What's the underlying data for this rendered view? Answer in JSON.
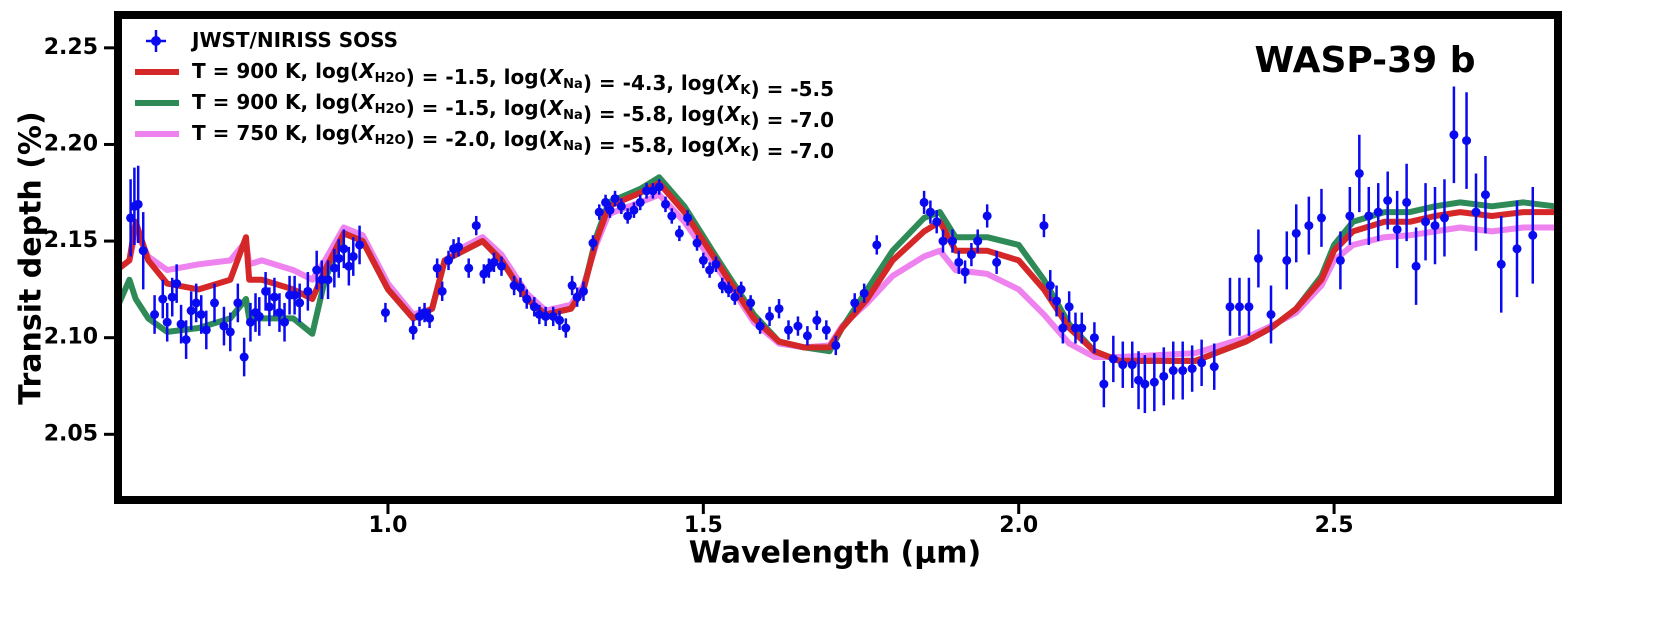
{
  "chart_data": {
    "type": "errorbar_line",
    "title": "WASP-39 b",
    "x_label": "Wavelength (μm)",
    "y_label": "Transit depth (%)",
    "xlim": [
      0.572,
      2.855
    ],
    "ylim": [
      2.016,
      2.267
    ],
    "xticks": [
      {
        "value": 1.0,
        "label": "1.0"
      },
      {
        "value": 1.5,
        "label": "1.5"
      },
      {
        "value": 2.0,
        "label": "2.0"
      },
      {
        "value": 2.5,
        "label": "2.5"
      }
    ],
    "yticks": [
      2.05,
      {
        "value": 2.1,
        "label": "2.10"
      },
      2.15,
      {
        "value": 2.2,
        "label": "2.20"
      },
      2.25
    ],
    "legend": "upper left",
    "series": [
      {
        "name": "JWST/NIRISS SOSS",
        "color": "#0a0af0",
        "x": [
          0.592,
          0.598,
          0.604,
          0.612,
          0.63,
          0.643,
          0.65,
          0.658,
          0.665,
          0.672,
          0.68,
          0.688,
          0.696,
          0.704,
          0.712,
          0.725,
          0.74,
          0.75,
          0.762,
          0.772,
          0.782,
          0.79,
          0.796,
          0.806,
          0.812,
          0.82,
          0.828,
          0.836,
          0.844,
          0.852,
          0.86,
          0.873,
          0.887,
          0.895,
          0.905,
          0.915,
          0.922,
          0.93,
          0.938,
          0.945,
          0.955,
          0.996,
          1.04,
          1.05,
          1.058,
          1.066,
          1.078,
          1.086,
          1.096,
          1.104,
          1.112,
          1.128,
          1.14,
          1.152,
          1.16,
          1.168,
          1.18,
          1.2,
          1.21,
          1.22,
          1.232,
          1.24,
          1.25,
          1.262,
          1.272,
          1.282,
          1.292,
          1.3,
          1.31,
          1.325,
          1.335,
          1.345,
          1.352,
          1.36,
          1.37,
          1.38,
          1.39,
          1.4,
          1.41,
          1.42,
          1.43,
          1.44,
          1.45,
          1.462,
          1.475,
          1.49,
          1.5,
          1.51,
          1.52,
          1.53,
          1.54,
          1.55,
          1.56,
          1.575,
          1.59,
          1.605,
          1.62,
          1.635,
          1.65,
          1.665,
          1.68,
          1.695,
          1.71,
          1.74,
          1.755,
          1.775,
          1.85,
          1.86,
          1.87,
          1.88,
          1.895,
          1.905,
          1.915,
          1.925,
          1.935,
          1.95,
          1.965,
          2.04,
          2.05,
          2.06,
          2.07,
          2.08,
          2.09,
          2.1,
          2.12,
          2.135,
          2.15,
          2.165,
          2.18,
          2.19,
          2.2,
          2.215,
          2.23,
          2.245,
          2.26,
          2.275,
          2.29,
          2.31,
          2.335,
          2.35,
          2.365,
          2.38,
          2.4,
          2.425,
          2.44,
          2.46,
          2.48,
          2.51,
          2.525,
          2.54,
          2.555,
          2.57,
          2.585,
          2.6,
          2.615,
          2.63,
          2.645,
          2.66,
          2.675,
          2.69,
          2.71,
          2.725,
          2.74,
          2.765,
          2.79,
          2.815
        ],
        "values": [
          2.162,
          2.168,
          2.169,
          2.145,
          2.112,
          2.12,
          2.108,
          2.121,
          2.128,
          2.107,
          2.099,
          2.114,
          2.118,
          2.112,
          2.104,
          2.118,
          2.106,
          2.103,
          2.118,
          2.09,
          2.108,
          2.113,
          2.111,
          2.124,
          2.116,
          2.121,
          2.113,
          2.108,
          2.122,
          2.122,
          2.118,
          2.124,
          2.135,
          2.13,
          2.13,
          2.136,
          2.141,
          2.146,
          2.137,
          2.142,
          2.148,
          2.113,
          2.104,
          2.111,
          2.113,
          2.11,
          2.136,
          2.124,
          2.14,
          2.146,
          2.147,
          2.136,
          2.158,
          2.133,
          2.136,
          2.139,
          2.137,
          2.127,
          2.126,
          2.12,
          2.116,
          2.112,
          2.111,
          2.111,
          2.109,
          2.105,
          2.127,
          2.121,
          2.124,
          2.149,
          2.165,
          2.17,
          2.166,
          2.172,
          2.168,
          2.163,
          2.166,
          2.17,
          2.176,
          2.176,
          2.178,
          2.169,
          2.163,
          2.154,
          2.162,
          2.149,
          2.14,
          2.135,
          2.138,
          2.127,
          2.125,
          2.121,
          2.125,
          2.118,
          2.106,
          2.111,
          2.115,
          2.104,
          2.106,
          2.101,
          2.109,
          2.104,
          2.096,
          2.118,
          2.123,
          2.148,
          2.17,
          2.165,
          2.16,
          2.15,
          2.15,
          2.139,
          2.134,
          2.143,
          2.15,
          2.163,
          2.139,
          2.158,
          2.127,
          2.119,
          2.105,
          2.116,
          2.105,
          2.105,
          2.1,
          2.076,
          2.089,
          2.086,
          2.086,
          2.078,
          2.076,
          2.077,
          2.08,
          2.083,
          2.083,
          2.084,
          2.087,
          2.085,
          2.116,
          2.116,
          2.116,
          2.141,
          2.112,
          2.14,
          2.154,
          2.158,
          2.162,
          2.14,
          2.163,
          2.185,
          2.163,
          2.165,
          2.171,
          2.156,
          2.17,
          2.137,
          2.16,
          2.158,
          2.162,
          2.205,
          2.202,
          2.165,
          2.174,
          2.138,
          2.146,
          2.153
        ],
        "errors": [
          0.02,
          0.02,
          0.02,
          0.02,
          0.01,
          0.01,
          0.01,
          0.01,
          0.01,
          0.01,
          0.01,
          0.01,
          0.01,
          0.01,
          0.01,
          0.01,
          0.01,
          0.01,
          0.01,
          0.01,
          0.01,
          0.01,
          0.01,
          0.01,
          0.01,
          0.01,
          0.01,
          0.01,
          0.01,
          0.01,
          0.01,
          0.01,
          0.01,
          0.01,
          0.01,
          0.01,
          0.01,
          0.01,
          0.01,
          0.01,
          0.01,
          0.005,
          0.005,
          0.005,
          0.005,
          0.005,
          0.005,
          0.005,
          0.005,
          0.005,
          0.005,
          0.005,
          0.005,
          0.005,
          0.005,
          0.005,
          0.005,
          0.005,
          0.005,
          0.005,
          0.005,
          0.005,
          0.005,
          0.005,
          0.005,
          0.005,
          0.005,
          0.005,
          0.005,
          0.004,
          0.004,
          0.004,
          0.004,
          0.004,
          0.004,
          0.004,
          0.004,
          0.004,
          0.004,
          0.004,
          0.004,
          0.004,
          0.004,
          0.004,
          0.004,
          0.004,
          0.004,
          0.004,
          0.004,
          0.004,
          0.004,
          0.004,
          0.004,
          0.004,
          0.004,
          0.005,
          0.005,
          0.005,
          0.005,
          0.005,
          0.005,
          0.005,
          0.005,
          0.005,
          0.005,
          0.005,
          0.006,
          0.006,
          0.006,
          0.006,
          0.006,
          0.006,
          0.006,
          0.006,
          0.006,
          0.006,
          0.006,
          0.006,
          0.008,
          0.008,
          0.008,
          0.008,
          0.008,
          0.008,
          0.008,
          0.012,
          0.012,
          0.012,
          0.012,
          0.015,
          0.015,
          0.015,
          0.015,
          0.015,
          0.015,
          0.012,
          0.012,
          0.012,
          0.015,
          0.015,
          0.015,
          0.015,
          0.015,
          0.015,
          0.015,
          0.015,
          0.015,
          0.015,
          0.015,
          0.02,
          0.015,
          0.015,
          0.015,
          0.02,
          0.02,
          0.02,
          0.02,
          0.02,
          0.02,
          0.025,
          0.025,
          0.02,
          0.02,
          0.025,
          0.025,
          0.025
        ]
      },
      {
        "name": "T = 900 K, log(XH2O) = -1.5, log(XNa) = -4.3, log(XK) = -5.5",
        "color": "#d62728",
        "x": [
          0.57,
          0.59,
          0.6,
          0.62,
          0.65,
          0.7,
          0.75,
          0.775,
          0.78,
          0.8,
          0.85,
          0.88,
          0.9,
          0.93,
          0.96,
          1.0,
          1.04,
          1.07,
          1.09,
          1.12,
          1.15,
          1.18,
          1.22,
          1.25,
          1.29,
          1.31,
          1.33,
          1.35,
          1.4,
          1.43,
          1.47,
          1.52,
          1.55,
          1.58,
          1.62,
          1.66,
          1.7,
          1.72,
          1.76,
          1.8,
          1.85,
          1.875,
          1.9,
          1.95,
          2.0,
          2.04,
          2.08,
          2.12,
          2.16,
          2.22,
          2.28,
          2.32,
          2.36,
          2.4,
          2.44,
          2.48,
          2.5,
          2.53,
          2.58,
          2.62,
          2.66,
          2.7,
          2.75,
          2.8,
          2.85
        ],
        "values": [
          2.135,
          2.14,
          2.16,
          2.14,
          2.128,
          2.125,
          2.13,
          2.152,
          2.13,
          2.13,
          2.125,
          2.12,
          2.135,
          2.154,
          2.15,
          2.125,
          2.11,
          2.115,
          2.14,
          2.145,
          2.15,
          2.14,
          2.12,
          2.112,
          2.115,
          2.125,
          2.15,
          2.168,
          2.175,
          2.18,
          2.165,
          2.14,
          2.125,
          2.11,
          2.098,
          2.095,
          2.095,
          2.105,
          2.12,
          2.14,
          2.155,
          2.16,
          2.145,
          2.145,
          2.14,
          2.125,
          2.105,
          2.093,
          2.088,
          2.088,
          2.088,
          2.093,
          2.098,
          2.105,
          2.115,
          2.13,
          2.145,
          2.155,
          2.16,
          2.16,
          2.163,
          2.165,
          2.163,
          2.165,
          2.165
        ]
      },
      {
        "name": "T = 900 K, log(XH2O) = -1.5, log(XNa) = -5.8, log(XK) = -7.0",
        "color": "#2e8b57",
        "x": [
          0.57,
          0.59,
          0.6,
          0.62,
          0.65,
          0.7,
          0.75,
          0.775,
          0.78,
          0.8,
          0.85,
          0.88,
          0.9,
          0.93,
          0.96,
          1.0,
          1.04,
          1.07,
          1.09,
          1.12,
          1.15,
          1.18,
          1.22,
          1.25,
          1.29,
          1.31,
          1.33,
          1.35,
          1.4,
          1.43,
          1.47,
          1.52,
          1.55,
          1.58,
          1.62,
          1.66,
          1.7,
          1.72,
          1.76,
          1.8,
          1.85,
          1.875,
          1.9,
          1.95,
          2.0,
          2.04,
          2.08,
          2.12,
          2.16,
          2.22,
          2.28,
          2.32,
          2.36,
          2.4,
          2.44,
          2.48,
          2.5,
          2.53,
          2.58,
          2.62,
          2.66,
          2.7,
          2.75,
          2.8,
          2.85
        ],
        "values": [
          2.115,
          2.13,
          2.12,
          2.11,
          2.103,
          2.105,
          2.11,
          2.12,
          2.11,
          2.11,
          2.11,
          2.102,
          2.13,
          2.154,
          2.15,
          2.125,
          2.11,
          2.115,
          2.14,
          2.145,
          2.15,
          2.14,
          2.12,
          2.112,
          2.115,
          2.125,
          2.152,
          2.17,
          2.177,
          2.183,
          2.168,
          2.142,
          2.127,
          2.112,
          2.098,
          2.095,
          2.093,
          2.105,
          2.125,
          2.145,
          2.162,
          2.165,
          2.152,
          2.152,
          2.148,
          2.13,
          2.107,
          2.093,
          2.088,
          2.088,
          2.088,
          2.093,
          2.098,
          2.105,
          2.115,
          2.132,
          2.148,
          2.16,
          2.165,
          2.165,
          2.168,
          2.17,
          2.168,
          2.17,
          2.168
        ]
      },
      {
        "name": "T = 750 K, log(XH2O) = -2.0, log(XNa) = -5.8, log(XK) = -7.0",
        "color": "#ee82ee",
        "x": [
          0.57,
          0.59,
          0.6,
          0.62,
          0.65,
          0.7,
          0.75,
          0.775,
          0.78,
          0.8,
          0.85,
          0.88,
          0.9,
          0.93,
          0.96,
          1.0,
          1.04,
          1.07,
          1.09,
          1.12,
          1.15,
          1.18,
          1.22,
          1.25,
          1.29,
          1.31,
          1.33,
          1.35,
          1.4,
          1.43,
          1.47,
          1.52,
          1.55,
          1.58,
          1.62,
          1.66,
          1.7,
          1.72,
          1.76,
          1.8,
          1.85,
          1.875,
          1.9,
          1.95,
          2.0,
          2.04,
          2.08,
          2.12,
          2.16,
          2.22,
          2.28,
          2.32,
          2.36,
          2.4,
          2.44,
          2.48,
          2.5,
          2.53,
          2.58,
          2.62,
          2.66,
          2.7,
          2.75,
          2.8,
          2.85
        ],
        "values": [
          2.135,
          2.14,
          2.155,
          2.142,
          2.135,
          2.138,
          2.14,
          2.15,
          2.138,
          2.14,
          2.135,
          2.13,
          2.14,
          2.157,
          2.153,
          2.128,
          2.112,
          2.115,
          2.14,
          2.147,
          2.152,
          2.143,
          2.123,
          2.114,
          2.117,
          2.127,
          2.148,
          2.164,
          2.17,
          2.174,
          2.16,
          2.137,
          2.123,
          2.108,
          2.097,
          2.095,
          2.096,
          2.106,
          2.118,
          2.132,
          2.142,
          2.145,
          2.135,
          2.133,
          2.125,
          2.112,
          2.097,
          2.09,
          2.09,
          2.091,
          2.092,
          2.096,
          2.1,
          2.106,
          2.113,
          2.127,
          2.14,
          2.148,
          2.152,
          2.153,
          2.155,
          2.157,
          2.155,
          2.157,
          2.157
        ]
      }
    ]
  }
}
